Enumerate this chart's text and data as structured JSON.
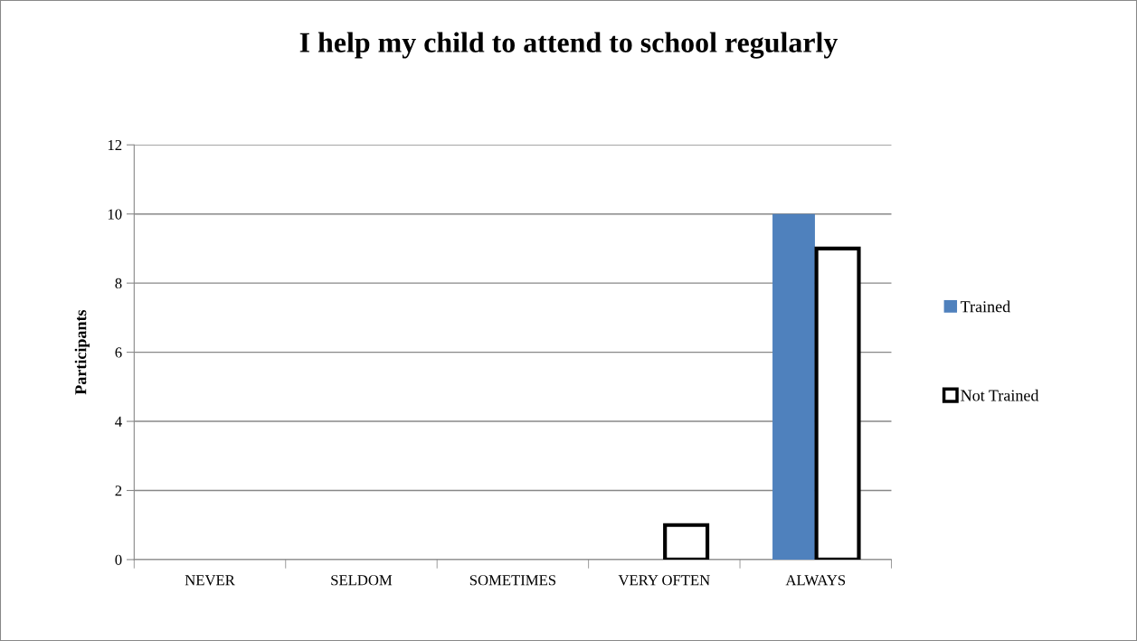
{
  "chart_data": {
    "type": "bar",
    "title": "I help my child to attend to school regularly",
    "ylabel": "Participants",
    "categories": [
      "NEVER",
      "SELDOM",
      "SOMETIMES",
      "VERY OFTEN",
      "ALWAYS"
    ],
    "series": [
      {
        "name": "Trained",
        "color": "#4f81bd",
        "values": [
          0,
          0,
          0,
          0,
          10
        ]
      },
      {
        "name": "Not Trained",
        "color": "#ffffff",
        "values": [
          0,
          0,
          0,
          1,
          9
        ]
      }
    ],
    "ylim": [
      0,
      12
    ],
    "yticks": [
      0,
      2,
      4,
      6,
      8,
      10,
      12
    ],
    "grid": "y",
    "legend": "right"
  }
}
